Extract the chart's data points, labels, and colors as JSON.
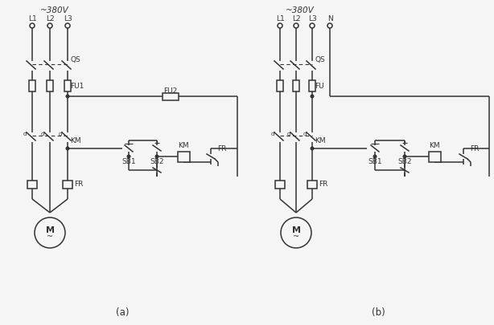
{
  "fig_width": 6.14,
  "fig_height": 4.05,
  "dpi": 100,
  "bg_color": "#f5f5f5",
  "line_color": "#333333",
  "lw": 1.1,
  "lw_thin": 0.8,
  "label_a": "(a)",
  "label_b": "(b)",
  "title_a": "~380V",
  "title_b": "~380V",
  "font_size_label": 7.5,
  "font_size_component": 6.5
}
